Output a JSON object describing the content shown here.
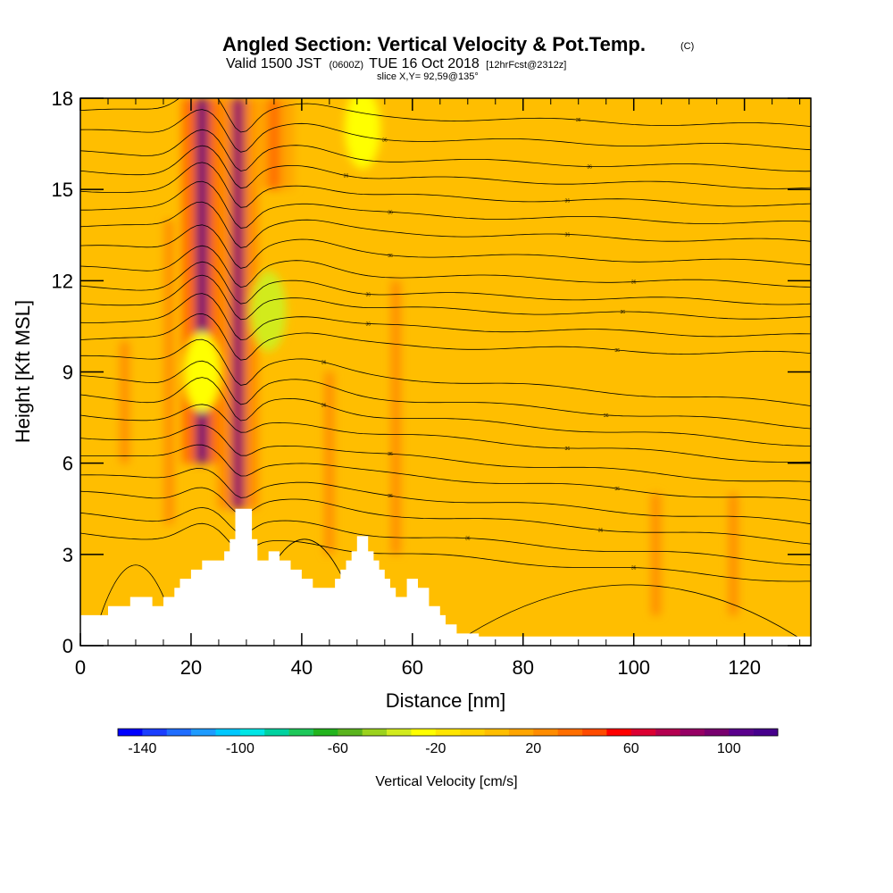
{
  "header": {
    "title": "Angled Section: Vertical Velocity & Pot.Temp.",
    "title_tag": "(C)",
    "valid_prefix": "Valid 1500 JST",
    "valid_utc": "(0600Z)",
    "valid_date": "TUE 16 Oct 2018",
    "forecast": "[12hrFcst@2312z]",
    "slice": "slice X,Y= 92,59@135°"
  },
  "chart_data": {
    "type": "heatmap",
    "xlabel": "Distance [nm]",
    "ylabel": "Height [Kft MSL]",
    "xlim": [
      0,
      132
    ],
    "ylim": [
      0,
      18
    ],
    "x_ticks": [
      0,
      20,
      40,
      60,
      80,
      100,
      120
    ],
    "y_ticks": [
      0,
      3,
      6,
      9,
      12,
      15,
      18
    ],
    "x_tick_labels": [
      "0",
      "20",
      "40",
      "60",
      "80",
      "100",
      "120"
    ],
    "y_tick_labels": [
      "0",
      "3",
      "6",
      "9",
      "12",
      "15",
      "18"
    ],
    "background_value_cm_s": 0,
    "updraft_columns": [
      {
        "x": 22,
        "y_from": 6,
        "y_to": 18,
        "peak_cm_s": 90
      },
      {
        "x": 28.5,
        "y_from": 4.5,
        "y_to": 18,
        "peak_cm_s": 80
      },
      {
        "x": 35,
        "y_from": 15,
        "y_to": 18,
        "peak_cm_s": 30
      }
    ],
    "downdraft_regions": [
      {
        "x": 34,
        "y": 11,
        "min_cm_s": -40
      },
      {
        "x": 51,
        "y": 17,
        "min_cm_s": -30
      },
      {
        "x": 22,
        "y": 9,
        "min_cm_s": -30
      }
    ],
    "terrain": {
      "x": [
        0,
        5,
        5,
        9,
        9,
        13,
        13,
        15,
        15,
        17,
        17,
        18,
        18,
        20,
        20,
        22,
        22,
        26,
        26,
        27,
        27,
        28,
        28,
        31,
        31,
        32,
        32,
        34,
        34,
        36,
        36,
        38,
        38,
        40,
        40,
        41,
        41,
        42,
        42,
        46,
        46,
        47,
        47,
        48,
        48,
        49,
        49,
        50,
        50,
        52,
        52,
        53,
        53,
        54,
        54,
        55,
        55,
        56,
        56,
        57,
        57,
        58,
        58,
        59,
        59,
        61,
        61,
        63,
        63,
        65,
        65,
        66,
        66,
        68,
        68,
        72,
        72,
        132
      ],
      "y": [
        1,
        1,
        1.3,
        1.3,
        1.6,
        1.6,
        1.3,
        1.3,
        1.6,
        1.6,
        1.9,
        1.9,
        2.2,
        2.2,
        2.5,
        2.5,
        2.8,
        2.8,
        3.1,
        3.1,
        3.5,
        3.5,
        4.5,
        4.5,
        3.5,
        3.5,
        2.8,
        2.8,
        3.1,
        3.1,
        2.8,
        2.8,
        2.5,
        2.5,
        2.2,
        2.2,
        2.2,
        2.2,
        1.9,
        1.9,
        2.2,
        2.2,
        2.5,
        2.5,
        2.8,
        2.8,
        3.1,
        3.1,
        3.6,
        3.6,
        3.1,
        3.1,
        2.8,
        2.8,
        2.5,
        2.5,
        2.2,
        2.2,
        1.9,
        1.9,
        1.6,
        1.6,
        1.6,
        1.6,
        2.2,
        2.2,
        1.9,
        1.9,
        1.3,
        1.3,
        1,
        1,
        0.7,
        0.7,
        0.4,
        0.4,
        0.3,
        0.3
      ]
    },
    "isentropes": {
      "label_value": "36",
      "levels": [
        {
          "base": 17.6,
          "label_x": 90
        },
        {
          "base": 16.9,
          "label_x": 55
        },
        {
          "base": 16.2,
          "label_x": 92
        },
        {
          "base": 15.6,
          "label_x": 48
        },
        {
          "base": 15.0,
          "label_x": 88
        },
        {
          "base": 14.4,
          "label_x": 56
        },
        {
          "base": 13.8,
          "label_x": 88
        },
        {
          "base": 13.1,
          "label_x": 56
        },
        {
          "base": 12.4,
          "label_x": 100
        },
        {
          "base": 11.8,
          "label_x": 52
        },
        {
          "base": 11.3,
          "label_x": 98
        },
        {
          "base": 10.7,
          "label_x": 52
        },
        {
          "base": 10.1,
          "label_x": 97
        },
        {
          "base": 9.5,
          "label_x": 44
        },
        {
          "base": 8.8,
          "label_x": 95
        },
        {
          "base": 8.2,
          "label_x": 44
        },
        {
          "base": 7.6,
          "label_x": 88
        },
        {
          "base": 6.9,
          "label_x": 56
        },
        {
          "base": 6.3,
          "label_x": 97
        },
        {
          "base": 5.6,
          "label_x": 56
        },
        {
          "base": 5.0,
          "label_x": 94
        },
        {
          "base": 4.3,
          "label_x": 70
        },
        {
          "base": 3.7,
          "label_x": 100
        }
      ]
    }
  },
  "colorbar": {
    "label": "Vertical Velocity [cm/s]",
    "min": -150,
    "max": 120,
    "step": 10,
    "tick_values": [
      -140,
      -100,
      -60,
      -20,
      20,
      60,
      100
    ],
    "tick_labels": [
      "-140",
      "-100",
      "-60",
      "-20",
      "20",
      "60",
      "100"
    ],
    "colors": [
      "#0000ff",
      "#1a3dff",
      "#1f6dff",
      "#1e9bff",
      "#00c8ff",
      "#00e6e6",
      "#00d2a0",
      "#1ec85a",
      "#23b41e",
      "#5ab41e",
      "#9bd21e",
      "#d2eb1e",
      "#ffff00",
      "#ffe600",
      "#ffd200",
      "#ffbe00",
      "#ffa500",
      "#ff8c00",
      "#ff6e00",
      "#ff4b00",
      "#ff0000",
      "#dc0032",
      "#b40050",
      "#960064",
      "#78006e",
      "#5a008c",
      "#46008c"
    ]
  },
  "colors": {
    "background_field": "#ffff00",
    "terrain": "#ffffff",
    "contour": "#000000"
  }
}
